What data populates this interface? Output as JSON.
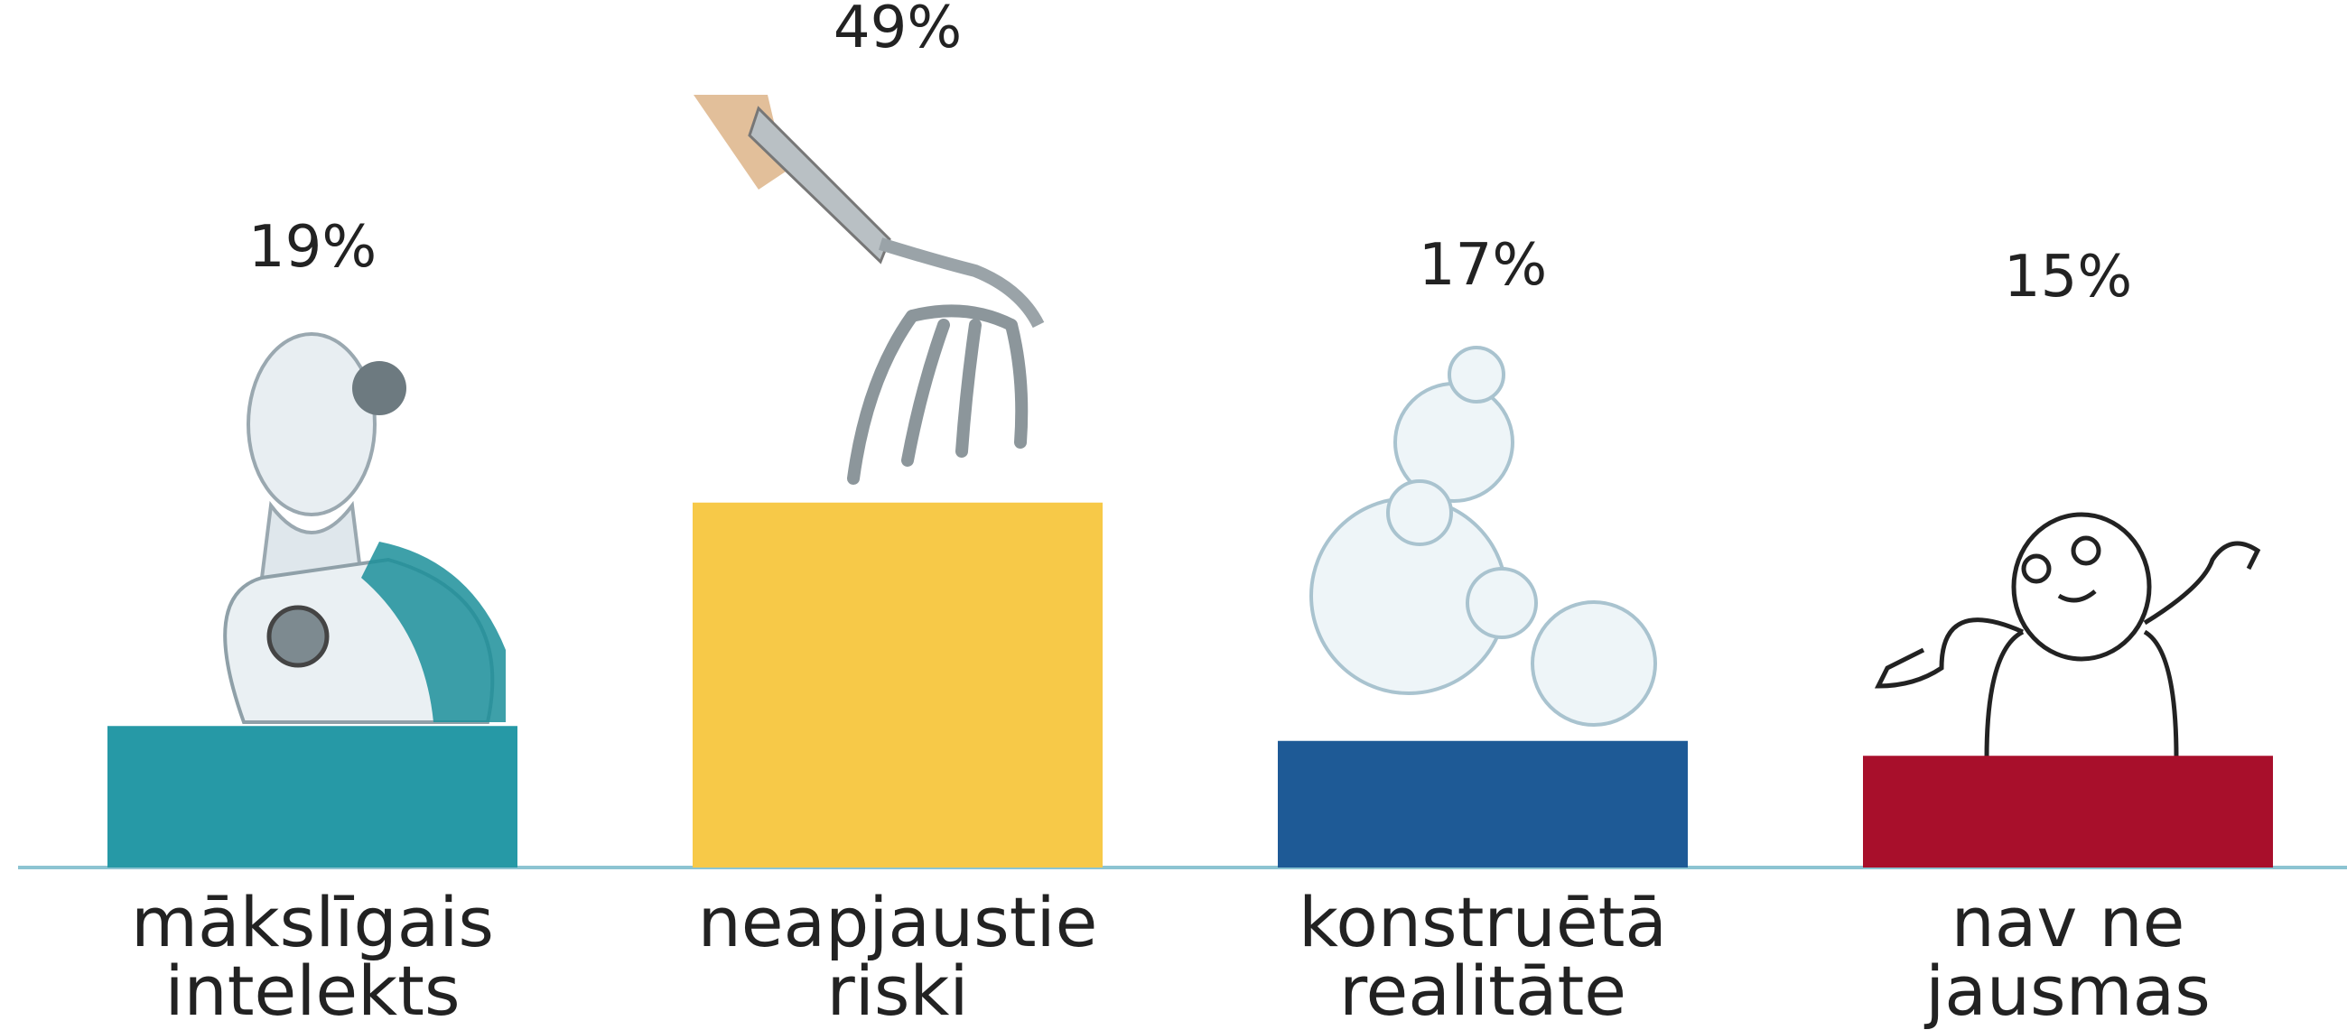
{
  "chart_data": {
    "type": "bar",
    "categories": [
      [
        "mākslīgais",
        "intelekts"
      ],
      [
        "neapjaustie",
        "riski"
      ],
      [
        "konstruētā",
        "realitāte"
      ],
      [
        "nav ne",
        "jausmas"
      ]
    ],
    "values": [
      19,
      49,
      17,
      15
    ],
    "value_labels": [
      "19%",
      "49%",
      "17%",
      "15%"
    ],
    "colors": [
      "#2699a6",
      "#f7c948",
      "#1e5a96",
      "#a80f2b"
    ]
  }
}
